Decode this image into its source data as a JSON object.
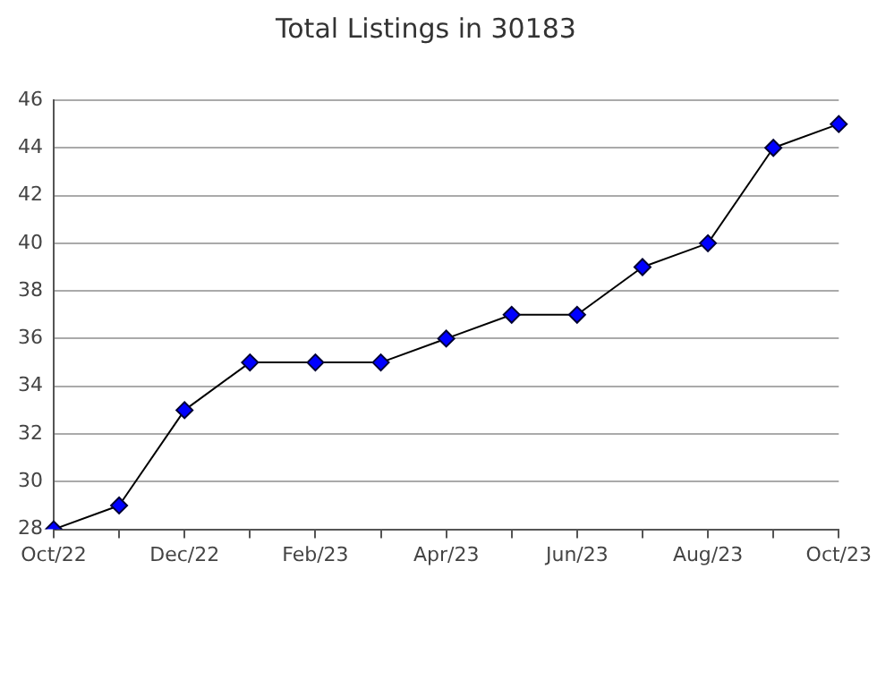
{
  "chart_data": {
    "type": "line",
    "title": "Total Listings in 30183",
    "categories": [
      "Oct/22",
      null,
      "Dec/22",
      null,
      "Feb/23",
      null,
      "Apr/23",
      null,
      "Jun/23",
      null,
      "Aug/23",
      null,
      "Oct/23"
    ],
    "series": [
      {
        "color": "#0000ff",
        "values": [
          28,
          29,
          33,
          35,
          35,
          35,
          36,
          37,
          37,
          39,
          40,
          44,
          45
        ]
      }
    ],
    "ylim": [
      28,
      46
    ],
    "yticks": [
      28,
      30,
      32,
      34,
      36,
      38,
      40,
      42,
      44,
      46
    ],
    "grid": "y",
    "legend": false,
    "marker": "diamond",
    "line_style": "solid"
  }
}
